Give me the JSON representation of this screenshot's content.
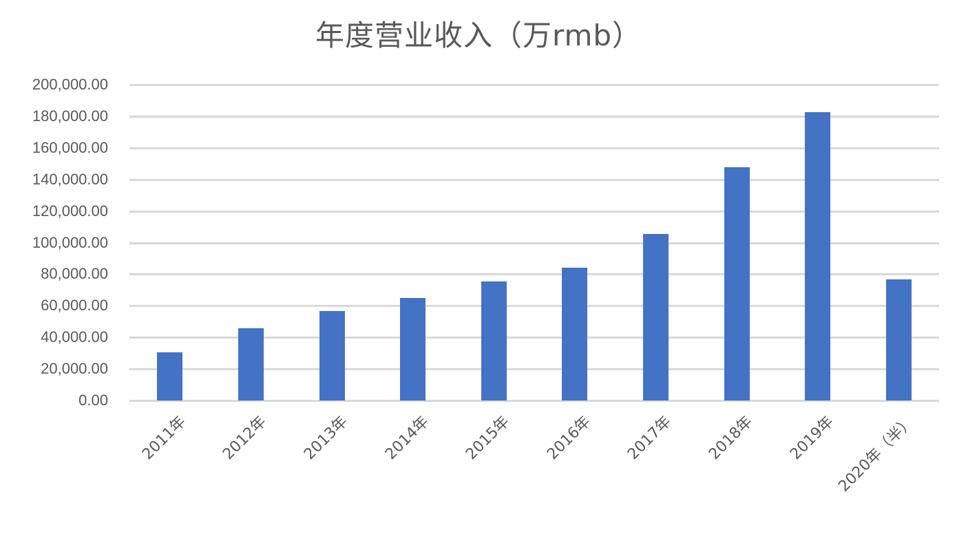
{
  "chart_data": {
    "type": "bar",
    "title": "年度营业收入（万rmb）",
    "xlabel": "",
    "ylabel": "",
    "ylim": [
      0,
      200000
    ],
    "grid": true,
    "legend": "none",
    "bar_color": "#4472c4",
    "gridline_color": "#d9d9d9",
    "text_color": "#595959",
    "y_ticks": [
      "0.00",
      "20,000.00",
      "40,000.00",
      "60,000.00",
      "80,000.00",
      "100,000.00",
      "120,000.00",
      "140,000.00",
      "160,000.00",
      "180,000.00",
      "200,000.00"
    ],
    "y_tick_values": [
      0,
      20000,
      40000,
      60000,
      80000,
      100000,
      120000,
      140000,
      160000,
      180000,
      200000
    ],
    "categories": [
      "2011年",
      "2012年",
      "2013年",
      "2014年",
      "2015年",
      "2016年",
      "2017年",
      "2018年",
      "2019年",
      "2020年（半）"
    ],
    "values": [
      30500,
      45800,
      56600,
      65000,
      75400,
      84100,
      105400,
      147700,
      182600,
      76700
    ]
  }
}
